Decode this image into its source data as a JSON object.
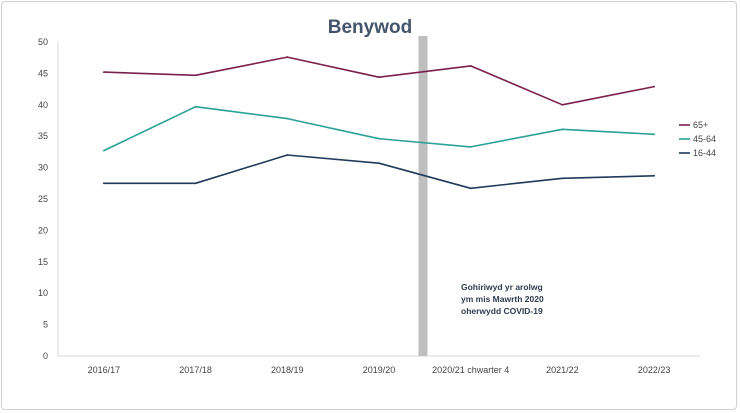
{
  "chart_data": {
    "type": "line",
    "title": "Benywod",
    "categories": [
      "2016/17",
      "2017/18",
      "2018/19",
      "2019/20",
      "2020/21 chwarter 4",
      "2021/22",
      "2022/23"
    ],
    "ylim": [
      0,
      50
    ],
    "yticks": [
      0,
      5,
      10,
      15,
      20,
      25,
      30,
      35,
      40,
      45,
      50
    ],
    "grid": false,
    "legend_position": "right",
    "series": [
      {
        "name": "65+",
        "color": "#7b1f4c",
        "values": [
          45.2,
          44.7,
          47.6,
          44.4,
          46.2,
          40.0,
          42.9
        ]
      },
      {
        "name": "45-64",
        "color": "#2aa198",
        "values": [
          32.7,
          39.7,
          37.8,
          34.6,
          33.3,
          36.1,
          35.3
        ]
      },
      {
        "name": "16-44",
        "color": "#1f3a5a",
        "values": [
          27.5,
          27.5,
          32.0,
          30.7,
          26.7,
          28.3,
          28.7
        ]
      }
    ],
    "annotation": {
      "lines": [
        "Gohiriwyd yr arolwg",
        "ym mis Mawrth 2020",
        "oherwydd COVID-19"
      ],
      "band_color": "#bfbfbf"
    },
    "axis_color": "#d9d9d9"
  }
}
